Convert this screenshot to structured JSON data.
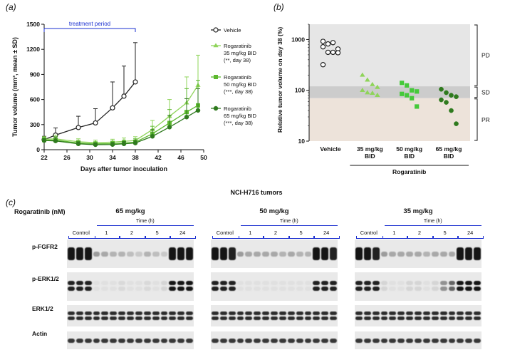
{
  "panels": {
    "a": "(a)",
    "b": "(b)",
    "c": "(c)"
  },
  "chart_data": [
    {
      "type": "line",
      "panel": "a",
      "title": "",
      "xlabel": "Days after tumor inoculation",
      "ylabel": "Tumor volume (mm³, mean ± SD)",
      "xlim": [
        22,
        50
      ],
      "ylim": [
        0,
        1500
      ],
      "xticks": [
        22,
        26,
        30,
        34,
        38,
        42,
        46,
        50
      ],
      "yticks": [
        0,
        300,
        600,
        900,
        1200,
        1500
      ],
      "annotation": {
        "text": "treatment period",
        "from": 22,
        "to": 38
      },
      "series": [
        {
          "name": "Vehicle",
          "legend_lines": [
            "Vehicle"
          ],
          "color": "#222222",
          "marker": "open-circle",
          "x": [
            22,
            24,
            28,
            31,
            34,
            36,
            38
          ],
          "y": [
            120,
            175,
            265,
            320,
            500,
            640,
            810
          ],
          "sd": [
            40,
            85,
            135,
            170,
            310,
            360,
            470
          ]
        },
        {
          "name": "Rogaratinib 35 mg/kg BID (**, day 38)",
          "legend_lines": [
            "Rogaratinib",
            "35 mg/kg BID",
            "(**, day 38)"
          ],
          "color": "#8fd45a",
          "marker": "triangle",
          "x": [
            22,
            24,
            28,
            31,
            34,
            36,
            38,
            41,
            44,
            47,
            49
          ],
          "y": [
            125,
            130,
            95,
            85,
            90,
            100,
            110,
            240,
            400,
            560,
            770
          ],
          "sd": [
            30,
            45,
            35,
            30,
            35,
            40,
            45,
            110,
            200,
            310,
            360
          ]
        },
        {
          "name": "Rogaratinib 50 mg/kg BID (***, day 38)",
          "legend_lines": [
            "Rogaratinib",
            "50 mg/kg BID",
            "(***, day 38)"
          ],
          "color": "#5cb82e",
          "marker": "square",
          "x": [
            22,
            24,
            28,
            31,
            34,
            36,
            38,
            41,
            44,
            47,
            49
          ],
          "y": [
            115,
            115,
            80,
            70,
            72,
            80,
            90,
            190,
            320,
            450,
            530
          ],
          "sd": [
            30,
            40,
            30,
            25,
            30,
            35,
            40,
            90,
            160,
            280,
            300
          ]
        },
        {
          "name": "Rogaratinib 65 mg/kg BID (***, day 38)",
          "legend_lines": [
            "Rogaratinib",
            "65 mg/kg BID",
            "(***, day 38)"
          ],
          "color": "#2f7a1e",
          "marker": "filled-circle",
          "x": [
            22,
            24,
            28,
            31,
            34,
            36,
            38,
            41,
            44,
            47,
            49
          ],
          "y": [
            110,
            105,
            70,
            60,
            62,
            70,
            80,
            160,
            270,
            390,
            470
          ],
          "sd": [
            25,
            35,
            25,
            20,
            25,
            30,
            35,
            80,
            140,
            220,
            260
          ]
        }
      ]
    },
    {
      "type": "scatter",
      "panel": "b",
      "ylabel": "Relative tumor volume on day 38 (%)",
      "yscale": "log",
      "ylim": [
        10,
        2000
      ],
      "yticks": [
        10,
        100,
        1000
      ],
      "categories": [
        "Vehicle",
        "35 mg/kg BID",
        "50 mg/kg BID",
        "65 mg/kg BID"
      ],
      "group_label": "Rogaratinib",
      "zones": [
        {
          "name": "PD",
          "from": 120,
          "to": 2000,
          "color": "#e6e6e6"
        },
        {
          "name": "SD",
          "from": 70,
          "to": 120,
          "color": "#cccccc"
        },
        {
          "name": "PR",
          "from": 10,
          "to": 70,
          "color": "#ede3da"
        }
      ],
      "groups": [
        {
          "category": "Vehicle",
          "marker": "open-circle",
          "color": "#222222",
          "values": [
            920,
            820,
            870,
            650,
            720,
            560,
            560,
            550,
            320
          ]
        },
        {
          "category": "35 mg/kg BID",
          "marker": "triangle",
          "color": "#8fd45a",
          "values": [
            200,
            160,
            130,
            115,
            100,
            90,
            88,
            80
          ]
        },
        {
          "category": "50 mg/kg BID",
          "marker": "square",
          "color": "#45c93a",
          "values": [
            140,
            125,
            100,
            95,
            85,
            80,
            70,
            48
          ]
        },
        {
          "category": "65 mg/kg BID",
          "marker": "filled-circle",
          "color": "#2f7a1e",
          "values": [
            105,
            90,
            80,
            75,
            65,
            58,
            40,
            22
          ]
        }
      ]
    }
  ],
  "blot": {
    "title": "NCI-H716 tumors",
    "treatment_label": "Rogaratinib (nM)",
    "time_label": "Time (h)",
    "control_label": "Control",
    "timepoints": [
      "1",
      "2",
      "5",
      "24"
    ],
    "doses": [
      "65 mg/kg",
      "50 mg/kg",
      "35 mg/kg"
    ],
    "rows": [
      "p-FGFR2",
      "p-ERK1/2",
      "ERK1/2",
      "Actin"
    ],
    "intensities": {
      "p-FGFR2": [
        [
          0.95,
          0.95,
          0.95,
          0.35,
          0.3,
          0.25,
          0.25,
          0.2,
          0.15,
          0.25,
          0.2,
          0.15,
          0.95,
          0.95,
          0.95
        ],
        [
          0.95,
          0.95,
          0.9,
          0.35,
          0.3,
          0.3,
          0.3,
          0.3,
          0.25,
          0.3,
          0.25,
          0.25,
          0.95,
          0.95,
          0.9
        ],
        [
          0.95,
          0.95,
          0.9,
          0.35,
          0.3,
          0.3,
          0.3,
          0.3,
          0.25,
          0.3,
          0.3,
          0.3,
          0.95,
          0.95,
          0.95
        ]
      ],
      "p-ERK1/2": [
        [
          0.9,
          0.9,
          0.9,
          0.05,
          0.05,
          0.05,
          0.08,
          0.05,
          0.05,
          0.08,
          0.05,
          0.1,
          0.95,
          0.95,
          0.95
        ],
        [
          0.9,
          0.9,
          0.9,
          0.05,
          0.05,
          0.05,
          0.05,
          0.05,
          0.05,
          0.05,
          0.05,
          0.05,
          0.9,
          0.9,
          0.9
        ],
        [
          0.9,
          0.9,
          0.9,
          0.1,
          0.05,
          0.05,
          0.1,
          0.1,
          0.05,
          0.1,
          0.4,
          0.6,
          0.95,
          0.95,
          0.95
        ]
      ],
      "ERK1/2": [
        [
          0.85,
          0.85,
          0.85,
          0.85,
          0.85,
          0.85,
          0.85,
          0.85,
          0.85,
          0.85,
          0.85,
          0.85,
          0.85,
          0.85,
          0.85
        ],
        [
          0.85,
          0.85,
          0.85,
          0.85,
          0.85,
          0.85,
          0.85,
          0.85,
          0.85,
          0.85,
          0.85,
          0.85,
          0.85,
          0.85,
          0.85
        ],
        [
          0.85,
          0.85,
          0.85,
          0.85,
          0.85,
          0.85,
          0.85,
          0.85,
          0.85,
          0.85,
          0.85,
          0.85,
          0.85,
          0.85,
          0.85
        ]
      ],
      "Actin": [
        [
          0.8,
          0.8,
          0.8,
          0.8,
          0.8,
          0.8,
          0.8,
          0.8,
          0.8,
          0.8,
          0.8,
          0.8,
          0.8,
          0.8,
          0.8
        ],
        [
          0.8,
          0.8,
          0.8,
          0.8,
          0.8,
          0.8,
          0.8,
          0.8,
          0.8,
          0.8,
          0.8,
          0.8,
          0.8,
          0.8,
          0.8
        ],
        [
          0.8,
          0.8,
          0.8,
          0.8,
          0.8,
          0.8,
          0.8,
          0.8,
          0.8,
          0.8,
          0.8,
          0.8,
          0.8,
          0.8,
          0.8
        ]
      ]
    }
  }
}
